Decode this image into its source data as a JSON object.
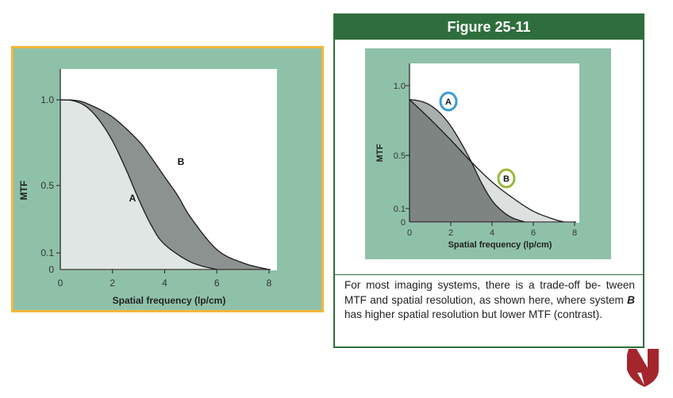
{
  "figure": {
    "title": "Figure 25-11",
    "caption_pre": "For most imaging systems, there is a trade-off be- tween MTF and spatial resolution, as shown here, where system ",
    "caption_em": "B",
    "caption_post": " has higher spatial resolution but lower MTF (contrast)."
  },
  "colors": {
    "frame_border": "#f3b73b",
    "panel_bg": "#8fc1a9",
    "header_green": "#2f6e3c",
    "circle_a": "#3b9ad0",
    "circle_b": "#9ab83a",
    "logo_red": "#a3262c"
  },
  "chart_data": [
    {
      "type": "area",
      "xlabel": "Spatial frequency (lp/cm)",
      "ylabel": "MTF",
      "xlim": [
        0,
        8
      ],
      "ylim": [
        0,
        1.0
      ],
      "x_ticks": [
        "0",
        "2",
        "4",
        "6",
        "8"
      ],
      "y_ticks": [
        "0",
        "0.1",
        "0.5",
        "1.0"
      ],
      "y_scale": "non-linear (ticks at 0, 0.1, 0.5, 1.0)",
      "grid": false,
      "series": [
        {
          "name": "A",
          "x": [
            0,
            0.5,
            1,
            1.5,
            2,
            2.5,
            3,
            3.5,
            4,
            5,
            6
          ],
          "y": [
            1.0,
            0.995,
            0.96,
            0.88,
            0.76,
            0.6,
            0.42,
            0.26,
            0.15,
            0.045,
            0.0
          ]
        },
        {
          "name": "B",
          "x": [
            0,
            0.5,
            1,
            2,
            3,
            3.5,
            4,
            4.5,
            5,
            6,
            7,
            8
          ],
          "y": [
            1.0,
            0.998,
            0.98,
            0.9,
            0.76,
            0.66,
            0.55,
            0.44,
            0.31,
            0.12,
            0.04,
            0.0
          ]
        }
      ]
    },
    {
      "type": "area",
      "xlabel": "Spatial frequency (lp/cm)",
      "ylabel": "MTF",
      "xlim": [
        0,
        8
      ],
      "ylim": [
        0,
        1.0
      ],
      "x_ticks": [
        "0",
        "2",
        "4",
        "6",
        "8"
      ],
      "y_ticks": [
        "0",
        "0.1",
        "0.5",
        "1.0"
      ],
      "y_scale": "non-linear (ticks at 0, 0.1, 0.5, 1.0)",
      "grid": false,
      "series": [
        {
          "name": "A",
          "x": [
            0,
            0.5,
            1,
            1.5,
            2,
            2.5,
            3,
            3.5,
            4,
            4.5,
            5,
            5.6
          ],
          "y": [
            0.9,
            0.89,
            0.86,
            0.8,
            0.71,
            0.59,
            0.45,
            0.29,
            0.16,
            0.08,
            0.03,
            0.0
          ]
        },
        {
          "name": "B",
          "x": [
            0,
            1,
            2,
            3,
            4,
            5,
            6,
            7,
            7.5
          ],
          "y": [
            0.9,
            0.76,
            0.61,
            0.45,
            0.3,
            0.18,
            0.08,
            0.02,
            0.0
          ]
        }
      ]
    }
  ]
}
